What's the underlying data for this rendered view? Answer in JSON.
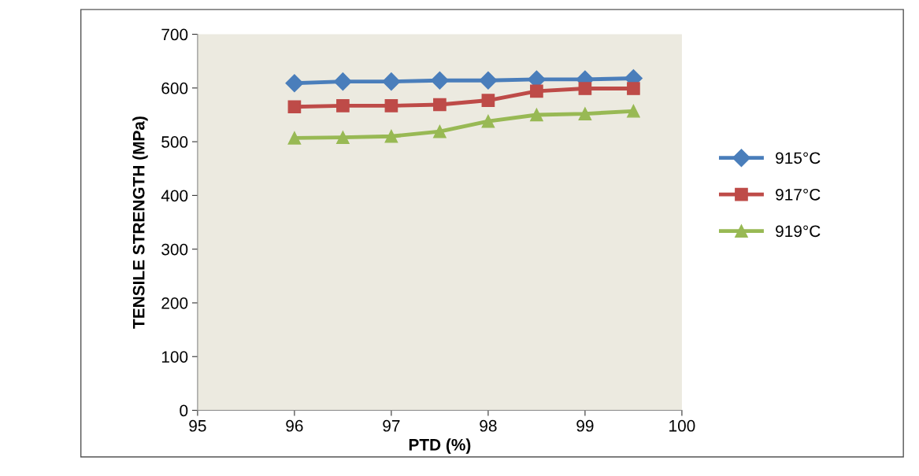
{
  "chart_data": {
    "type": "line",
    "xlabel": "PTD (%)",
    "ylabel": "TENSILE STRENGTH (MPa)",
    "x": [
      96,
      96.5,
      97,
      97.5,
      98,
      98.5,
      99,
      99.5
    ],
    "series": [
      {
        "name": "915°C",
        "color": "#4a7ebb",
        "marker": "diamond",
        "values": [
          609,
          612,
          612,
          614,
          614,
          616,
          616,
          618
        ]
      },
      {
        "name": "917°C",
        "color": "#be4b48",
        "marker": "square",
        "values": [
          565,
          567,
          567,
          569,
          577,
          594,
          599,
          599
        ]
      },
      {
        "name": "919°C",
        "color": "#98b954",
        "marker": "triangle",
        "values": [
          507,
          508,
          510,
          519,
          538,
          550,
          552,
          557
        ]
      }
    ],
    "xlim": [
      95,
      100
    ],
    "xticks": [
      95,
      96,
      97,
      98,
      99,
      100
    ],
    "ylim": [
      0,
      700
    ],
    "yticks": [
      0,
      100,
      200,
      300,
      400,
      500,
      600,
      700
    ],
    "grid": false,
    "legend": "right",
    "line_style": "solid"
  }
}
